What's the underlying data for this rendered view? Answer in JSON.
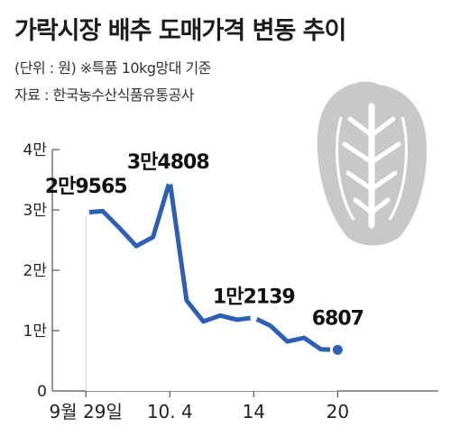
{
  "title": "가락시장 배추 도매가격 변동 추이",
  "unit_note": "(단위 : 원)   ※특품 10kg망대 기준",
  "source": "자료 : 한국농수산식품유통공사",
  "colors": {
    "line": "#2d5fb4",
    "area": "#ffffff",
    "grid": "#555555",
    "cabbage": "#c8c8c8"
  },
  "chart_data": {
    "type": "area",
    "title": "가락시장 배추 도매가격 변동 추이",
    "ylabel": "",
    "xlabel": "",
    "ylim": [
      0,
      40000
    ],
    "yticks": [
      {
        "value": 0,
        "label": "0"
      },
      {
        "value": 10000,
        "label": "1만"
      },
      {
        "value": 20000,
        "label": "2만"
      },
      {
        "value": 30000,
        "label": "3만"
      },
      {
        "value": 40000,
        "label": "4만"
      }
    ],
    "xlim": [
      0,
      23
    ],
    "xticks": [
      {
        "index": 2,
        "label": "9월 29일"
      },
      {
        "index": 7,
        "label": "10. 4"
      },
      {
        "index": 12,
        "label": "14"
      },
      {
        "index": 17,
        "label": "20"
      }
    ],
    "series": [
      {
        "values": [
          {
            "index": 2,
            "value": 29565
          },
          {
            "index": 3,
            "value": 29800
          },
          {
            "index": 4,
            "value": 27000
          },
          {
            "index": 5,
            "value": 24000
          },
          {
            "index": 6,
            "value": 25500
          },
          {
            "index": 7,
            "value": 34808
          },
          {
            "index": 8,
            "value": 15000
          },
          {
            "index": 9,
            "value": 11500
          },
          {
            "index": 10,
            "value": 12500
          },
          {
            "index": 11,
            "value": 11800
          },
          {
            "index": 12,
            "value": 12139
          },
          {
            "index": 13,
            "value": 10800
          },
          {
            "index": 14,
            "value": 8200
          },
          {
            "index": 15,
            "value": 8800
          },
          {
            "index": 16,
            "value": 6900
          },
          {
            "index": 17,
            "value": 6807
          }
        ]
      }
    ],
    "data_labels": [
      {
        "index": 2,
        "value": 29565,
        "label": "2만9565"
      },
      {
        "index": 7,
        "value": 34808,
        "label": "3만4808"
      },
      {
        "index": 12,
        "value": 12139,
        "label": "1만2139"
      },
      {
        "index": 17,
        "value": 6807,
        "label": "6807"
      }
    ]
  }
}
